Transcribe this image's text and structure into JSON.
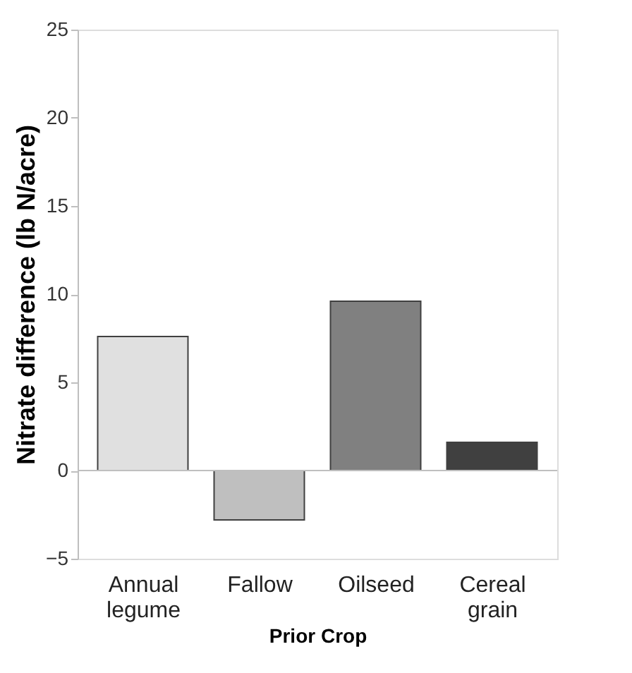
{
  "chart_data": {
    "type": "bar",
    "xlabel": "Prior Crop",
    "ylabel": "Nitrate difference (lb N/acre)",
    "categories": [
      "Annual legume",
      "Fallow",
      "Oilseed",
      "Cereal grain"
    ],
    "values": [
      7.6,
      -2.8,
      9.6,
      1.6
    ],
    "colors": [
      "#e0e0e0",
      "#bfbfbf",
      "#808080",
      "#404040"
    ],
    "ylim": [
      -5,
      25
    ],
    "yticks": [
      -5,
      0,
      5,
      10,
      15,
      20,
      25
    ],
    "grid": false,
    "ref_lines": [
      {
        "axis": "y",
        "value": 0,
        "color": "#bfbfbf"
      }
    ]
  }
}
